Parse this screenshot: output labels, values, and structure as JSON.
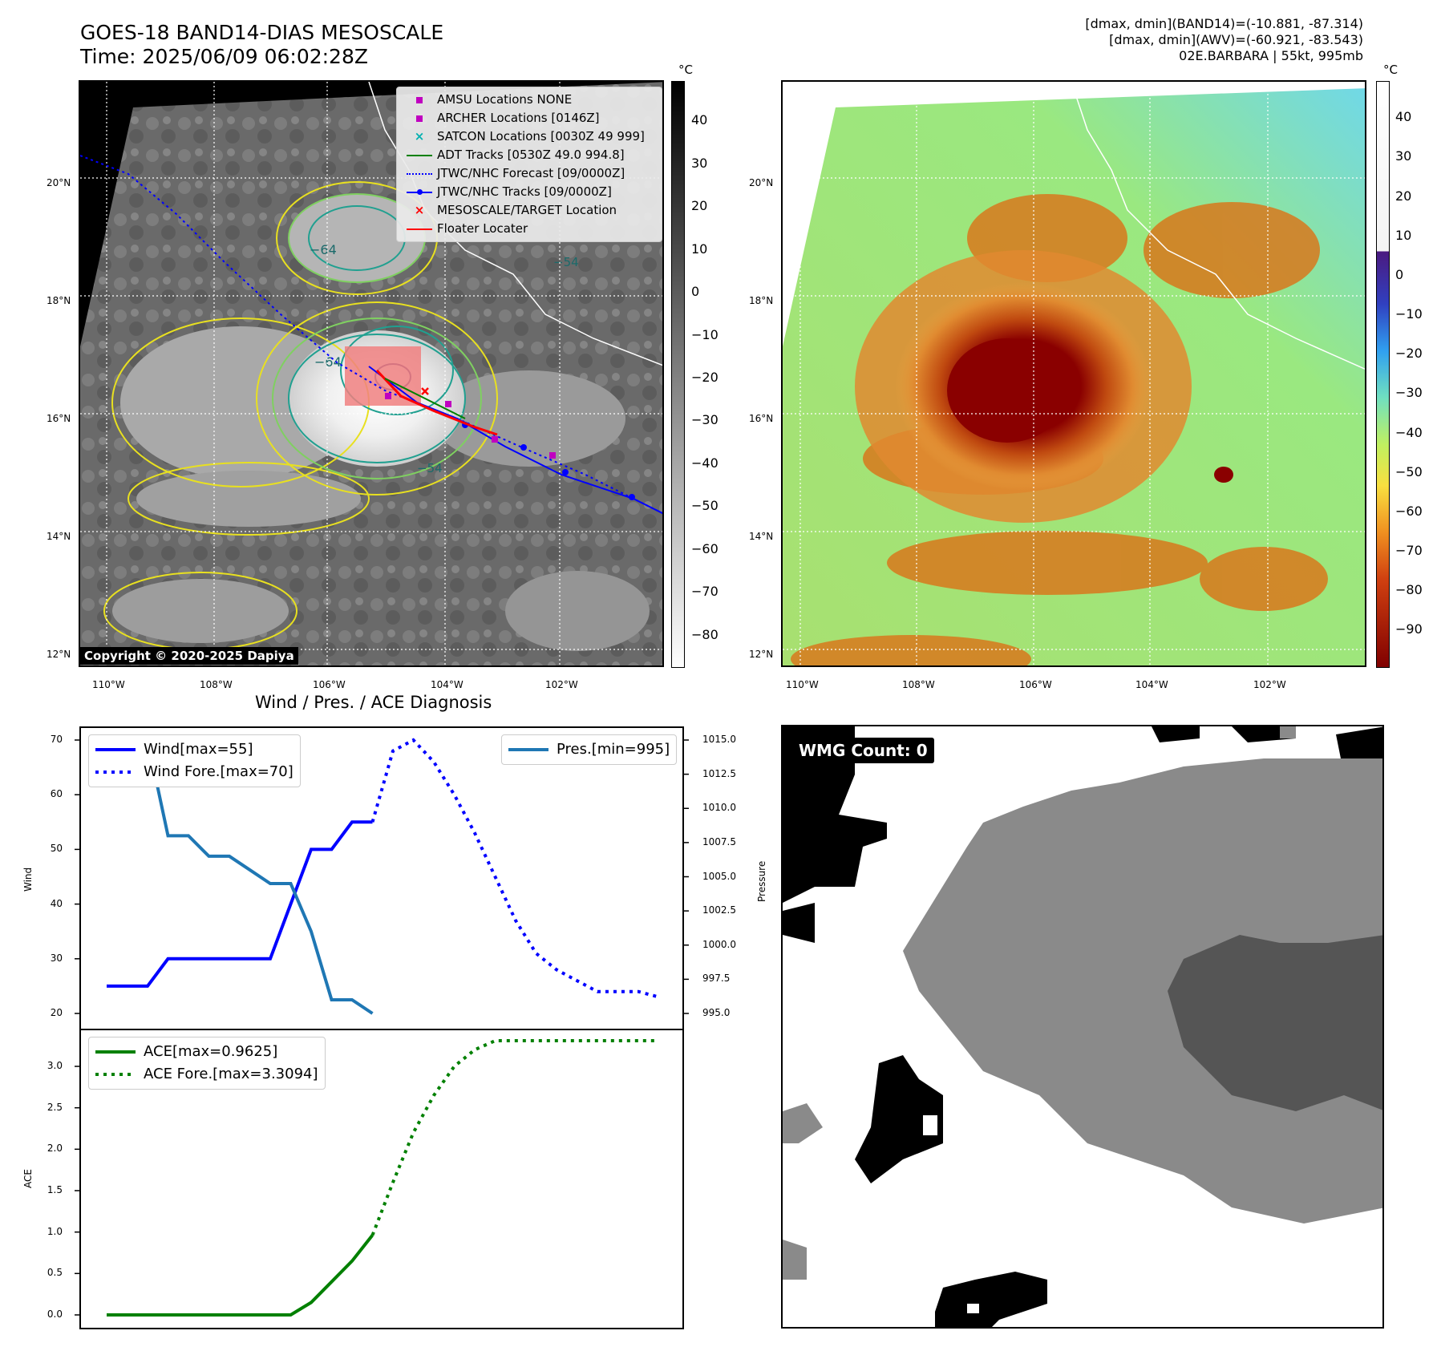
{
  "header": {
    "title_line1": "GOES-18 BAND14-DIAS MESOSCALE",
    "title_line2": "Time: 2025/06/09 06:02:28Z",
    "info_line1": "[dmax, dmin](BAND14)=(-10.881, -87.314)",
    "info_line2": "[dmax, dmin](AWV)=(-60.921, -83.543)",
    "info_line3": "02E.BARBARA | 55kt, 995mb"
  },
  "map_axes": {
    "lat_labels": [
      "20°N",
      "18°N",
      "16°N",
      "14°N",
      "12°N"
    ],
    "lon_labels": [
      "110°W",
      "108°W",
      "106°W",
      "104°W",
      "102°W"
    ]
  },
  "colorbar_left": {
    "unit": "°C",
    "ticks": [
      "40",
      "30",
      "20",
      "10",
      "0",
      "−10",
      "−20",
      "−30",
      "−40",
      "−50",
      "−60",
      "−70",
      "−80"
    ]
  },
  "colorbar_right": {
    "unit": "°C",
    "ticks": [
      "40",
      "30",
      "20",
      "10",
      "0",
      "−10",
      "−20",
      "−30",
      "−40",
      "−50",
      "−60",
      "−70",
      "−80",
      "−90"
    ]
  },
  "map_legend": [
    {
      "label": "AMSU Locations NONE",
      "color": "#c000c0",
      "symbol": "square"
    },
    {
      "label": "ARCHER Locations [0146Z]",
      "color": "#c000c0",
      "symbol": "square"
    },
    {
      "label": "SATCON Locations [0030Z 49 999]",
      "color": "#00b0b0",
      "symbol": "x"
    },
    {
      "label": "ADT Tracks [0530Z 49.0 994.8]",
      "color": "#008000",
      "symbol": "line"
    },
    {
      "label": "JTWC/NHC Forecast [09/0000Z]",
      "color": "#0000ff",
      "symbol": "dotted"
    },
    {
      "label": "JTWC/NHC Tracks [09/0000Z]",
      "color": "#0000ff",
      "symbol": "linedot"
    },
    {
      "label": "MESOSCALE/TARGET Location",
      "color": "#ff0000",
      "symbol": "x"
    },
    {
      "label": "Floater Locater",
      "color": "#ff0000",
      "symbol": "line"
    }
  ],
  "contour_labels": [
    "−64",
    "−64",
    "−54",
    "−54"
  ],
  "copyright": "Copyright © 2020-2025 Dapiya",
  "diagnosis_title": "Wind / Pres. / ACE Diagnosis",
  "wmg_label": "WMG Count: 0",
  "chart_data": [
    {
      "type": "line",
      "title": "Wind / Pres. / ACE Diagnosis",
      "ylabel": "Wind",
      "y2label": "Pressure",
      "ylim": [
        18,
        72
      ],
      "y2lim": [
        994.3,
        1015.3
      ],
      "yticks": [
        "70",
        "60",
        "50",
        "40",
        "30",
        "20"
      ],
      "y2ticks": [
        "1015.0",
        "1012.5",
        "1010.0",
        "1007.5",
        "1005.0",
        "1002.5",
        "1000.0",
        "997.5",
        "995.0"
      ],
      "x": [
        0,
        1,
        2,
        3,
        4,
        5,
        6,
        7,
        8,
        9,
        10,
        11,
        12,
        13,
        14,
        15,
        16,
        17,
        18,
        19,
        20,
        21,
        22,
        23,
        24,
        25,
        26
      ],
      "series": [
        {
          "name": "Wind[max=55]",
          "color": "#0000ff",
          "style": "solid",
          "x": [
            0,
            1,
            2,
            3,
            4,
            5,
            6,
            7,
            8,
            9,
            10,
            11,
            12,
            13
          ],
          "values": [
            25,
            25,
            25,
            30,
            30,
            30,
            30,
            30,
            30,
            40,
            50,
            50,
            55,
            55
          ]
        },
        {
          "name": "Wind Fore.[max=70]",
          "color": "#0000ff",
          "style": "dotted",
          "x": [
            13,
            14,
            15,
            16,
            17,
            18,
            19,
            20,
            21,
            22,
            23,
            24,
            25,
            26,
            27
          ],
          "values": [
            55,
            68,
            70,
            66,
            60,
            53,
            45,
            37,
            31,
            28,
            26,
            24,
            24,
            24,
            23
          ]
        },
        {
          "name": "Pres.[min=995]",
          "color": "#1f77b4",
          "style": "solid",
          "axis": "right",
          "x": [
            0,
            1,
            2,
            3,
            4,
            5,
            6,
            7,
            8,
            9,
            10,
            11,
            12,
            13
          ],
          "values": [
            1015,
            1015,
            1015,
            1008,
            1008,
            1006.5,
            1006.5,
            1005.5,
            1004.5,
            1004.5,
            1001,
            996,
            996,
            995
          ]
        }
      ],
      "legend_left": [
        "Wind[max=55]",
        "Wind Fore.[max=70]"
      ],
      "legend_right": [
        "Pres.[min=995]"
      ]
    },
    {
      "type": "line",
      "ylabel": "ACE",
      "ylim": [
        -0.1,
        3.4
      ],
      "yticks": [
        "3.0",
        "2.5",
        "2.0",
        "1.5",
        "1.0",
        "0.5",
        "0.0"
      ],
      "series": [
        {
          "name": "ACE[max=0.9625]",
          "color": "#008000",
          "style": "solid",
          "x": [
            0,
            1,
            2,
            3,
            4,
            5,
            6,
            7,
            8,
            9,
            10,
            11,
            12,
            13
          ],
          "values": [
            0,
            0,
            0,
            0,
            0,
            0,
            0,
            0,
            0,
            0,
            0.15,
            0.4,
            0.65,
            0.9625
          ]
        },
        {
          "name": "ACE Fore.[max=3.3094]",
          "color": "#008000",
          "style": "dotted",
          "x": [
            13,
            14,
            15,
            16,
            17,
            18,
            19,
            20,
            21,
            22,
            23,
            24,
            25,
            26,
            27
          ],
          "values": [
            0.9625,
            1.6,
            2.2,
            2.65,
            3.0,
            3.2,
            3.3094,
            3.3094,
            3.3094,
            3.3094,
            3.3094,
            3.3094,
            3.3094,
            3.3094,
            3.3094
          ]
        }
      ],
      "legend": [
        "ACE[max=0.9625]",
        "ACE Fore.[max=3.3094]"
      ]
    }
  ]
}
